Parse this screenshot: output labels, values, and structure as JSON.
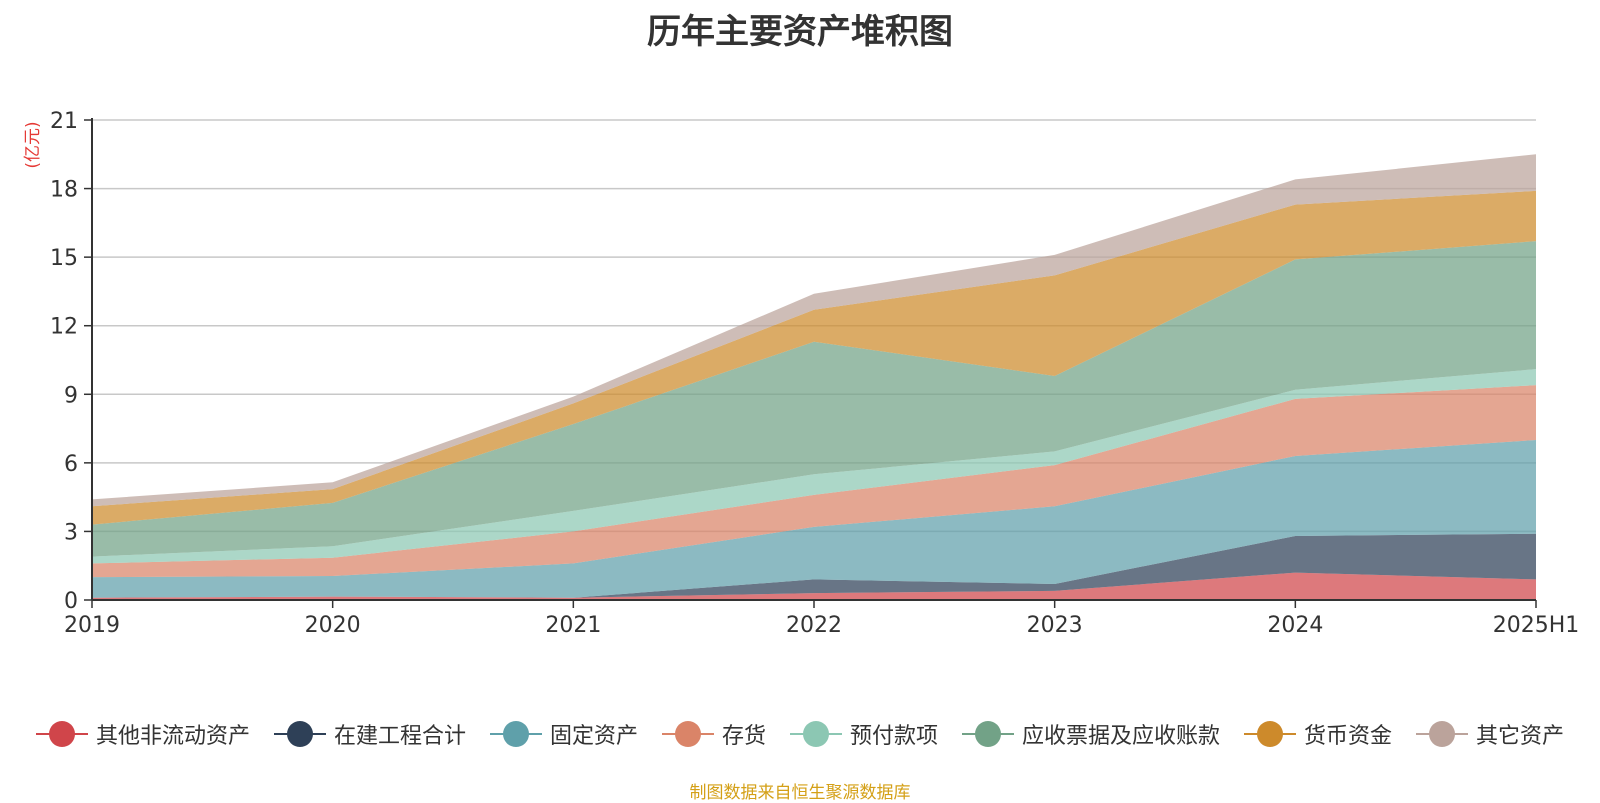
{
  "chart_data": {
    "type": "area",
    "title": "历年主要资产堆积图",
    "unit": "(亿元)",
    "x": [
      "2019",
      "2020",
      "2021",
      "2022",
      "2023",
      "2024",
      "2025H1"
    ],
    "ylim": [
      0,
      21
    ],
    "yticks": [
      "0",
      "3",
      "6",
      "9",
      "12",
      "15",
      "18",
      "21"
    ],
    "stacked": true,
    "grid": true,
    "legend_position": "bottom",
    "series": [
      {
        "name": "其他非流动资产",
        "color": "#d0454a",
        "values": [
          0.1,
          0.15,
          0.1,
          0.3,
          0.4,
          1.2,
          0.9
        ]
      },
      {
        "name": "在建工程合计",
        "color": "#2e4057",
        "values": [
          0.0,
          0.0,
          0.0,
          0.6,
          0.3,
          1.6,
          2.0
        ]
      },
      {
        "name": "固定资产",
        "color": "#5fa0aa",
        "values": [
          0.9,
          0.9,
          1.5,
          2.3,
          3.4,
          3.5,
          4.1
        ]
      },
      {
        "name": "存货",
        "color": "#da8468",
        "values": [
          0.6,
          0.8,
          1.4,
          1.4,
          1.8,
          2.5,
          2.4
        ]
      },
      {
        "name": "预付款项",
        "color": "#8cc7b3",
        "values": [
          0.3,
          0.5,
          0.9,
          0.9,
          0.6,
          0.4,
          0.7
        ]
      },
      {
        "name": "应收票据及应收账款",
        "color": "#72a287",
        "values": [
          1.4,
          1.9,
          3.8,
          5.8,
          3.3,
          5.7,
          5.6
        ]
      },
      {
        "name": "货币资金",
        "color": "#cd8a2b",
        "values": [
          0.8,
          0.6,
          0.9,
          1.4,
          4.4,
          2.4,
          2.2
        ]
      },
      {
        "name": "其它资产",
        "color": "#bba39b",
        "values": [
          0.3,
          0.3,
          0.3,
          0.7,
          0.9,
          1.1,
          1.6
        ]
      }
    ],
    "source_note": "制图数据来自恒生聚源数据库"
  }
}
